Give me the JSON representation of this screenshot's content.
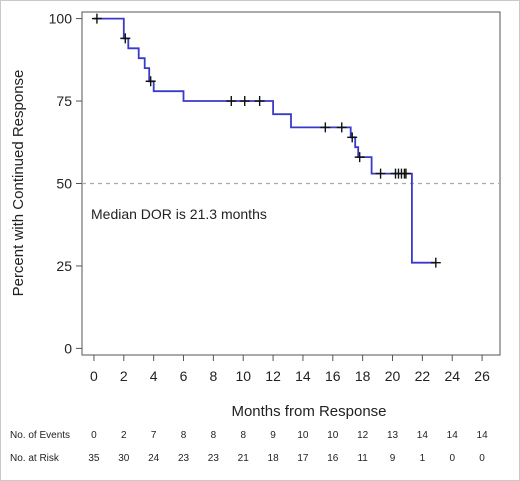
{
  "chart_data": {
    "type": "line",
    "title": "",
    "xlabel": "Months from Response",
    "ylabel": "Percent with Continued Response",
    "xlim": [
      -0.8,
      27.2
    ],
    "ylim": [
      -2,
      102
    ],
    "x_ticks": [
      0,
      2,
      4,
      6,
      8,
      10,
      12,
      14,
      16,
      18,
      20,
      22,
      24,
      26
    ],
    "y_ticks": [
      0,
      25,
      50,
      75,
      100
    ],
    "grid": false,
    "legend": "none",
    "reference_line": {
      "y": 50,
      "style": "dashed",
      "color": "#aaaaaa"
    },
    "annotation": "Median DOR is 21.3 months",
    "series": [
      {
        "color": "#3a3ac8",
        "step_points": [
          [
            0,
            100
          ],
          [
            2.0,
            100
          ],
          [
            2.0,
            94
          ],
          [
            2.3,
            94
          ],
          [
            2.3,
            91
          ],
          [
            3.0,
            91
          ],
          [
            3.0,
            88
          ],
          [
            3.4,
            88
          ],
          [
            3.4,
            85
          ],
          [
            3.7,
            85
          ],
          [
            3.7,
            81
          ],
          [
            4.0,
            81
          ],
          [
            4.0,
            78
          ],
          [
            6.0,
            78
          ],
          [
            6.0,
            75
          ],
          [
            12.0,
            75
          ],
          [
            12.0,
            71
          ],
          [
            13.2,
            71
          ],
          [
            13.2,
            67
          ],
          [
            17.2,
            67
          ],
          [
            17.2,
            64
          ],
          [
            17.5,
            64
          ],
          [
            17.5,
            61
          ],
          [
            17.7,
            61
          ],
          [
            17.7,
            58
          ],
          [
            18.6,
            58
          ],
          [
            18.6,
            53
          ],
          [
            21.3,
            53
          ],
          [
            21.3,
            26
          ],
          [
            22.9,
            26
          ]
        ],
        "censored": [
          [
            0.2,
            100
          ],
          [
            2.1,
            94
          ],
          [
            3.8,
            81
          ],
          [
            9.2,
            75
          ],
          [
            10.1,
            75
          ],
          [
            11.1,
            75
          ],
          [
            15.5,
            67
          ],
          [
            16.6,
            67
          ],
          [
            17.3,
            64
          ],
          [
            17.8,
            58
          ],
          [
            19.2,
            53
          ],
          [
            20.2,
            53
          ],
          [
            20.4,
            53
          ],
          [
            20.6,
            53
          ],
          [
            20.8,
            53
          ],
          [
            20.9,
            53
          ],
          [
            22.9,
            26
          ]
        ]
      }
    ],
    "risk_table": {
      "rows": [
        {
          "label": "No. of Events",
          "values": [
            "0",
            "2",
            "7",
            "8",
            "8",
            "8",
            "9",
            "10",
            "10",
            "12",
            "13",
            "14",
            "14",
            "14"
          ]
        },
        {
          "label": "No. at Risk",
          "values": [
            "35",
            "30",
            "24",
            "23",
            "23",
            "21",
            "18",
            "17",
            "16",
            "11",
            "9",
            "1",
            "0",
            "0"
          ]
        }
      ]
    }
  }
}
